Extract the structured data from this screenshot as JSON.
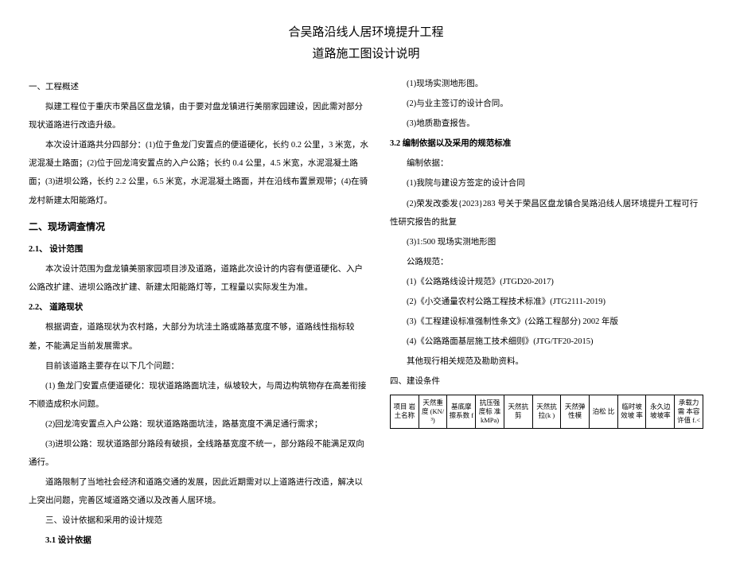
{
  "title": {
    "line1": "合吴路沿线人居环境提升工程",
    "line2": "道路施工图设计说明"
  },
  "left": {
    "h1": "一、工程概述",
    "p1": "拟建工程位于重庆市荣昌区盘龙镇，由于要对盘龙镇进行美丽家园建设，因此需对部分现状道路进行改造升级。",
    "p2": "本次设计道路共分四部分：(1)位于鱼龙门安置点的便道硬化，长约 0.2 公里，3 米宽，水泥混凝土路面；(2)位于回龙湾安置点的入户公路；长约 0.4 公里，4.5 米宽，水泥混凝土路面；(3)进坝公路，长约 2.2 公里，6.5 米宽，水泥混凝土路面，并在沿线布置景观带；(4)在骑龙村新建太阳能路灯。",
    "h2": "二、现场调查情况",
    "h2_1": "2.1、  设计范围",
    "p3": "本次设计范围为盘龙镇美丽家园项目涉及道路，道路此次设计的内容有便道硬化、入户公路改扩建、进坝公路改扩建、新建太阳能路灯等，工程量以实际发生为准。",
    "h2_2": "2.2、  道路现状",
    "p4": "根据调查，道路现状为农村路，大部分为坑洼土路或路基宽度不够，道路线性指标较差，不能满足当前发展需求。",
    "p5": "目前该道路主要存在以下几个问题：",
    "p6": "(1) 鱼龙门安置点便道硬化：现状道路路面坑洼，纵坡较大，与周边构筑物存在高差衔接不顺造成积水问题。",
    "p7": "(2)回龙湾安置点入户公路：现状道路路面坑洼，路基宽度不满足通行需求；",
    "p8": "(3)进坝公路：现状道路部分路段有破损，全线路基宽度不统一，部分路段不能满足双向通行。",
    "p9": "道路限制了当地社会经济和道路交通的发展，因此近期需对以上道路进行改造，解决以上突出问题，完善区域道路交通以及改善人居环境。",
    "h3": "三、设计依据和采用的设计规范",
    "h3_1": "3.1    设计依据"
  },
  "right": {
    "r1": "(1)现场实测地形图。",
    "r2": "(2)与业主签订的设计合同。",
    "r3": "(3)地质勘查报告。",
    "h3_2": "3.2    编制依据以及采用的规范标准",
    "r4": "编制依据：",
    "r5": "(1)我院与建设方签定的设计合同",
    "r6": "(2)荣发改委发{2023}283 号关于荣昌区盘龙镇合吴路沿线人居环境提升工程可行性研究报告的批复",
    "r7": "(3)1:500 现场实测地形图",
    "r8": "公路规范：",
    "r9": "(1)《公路路线设计规范》(JTGD20-2017)",
    "r10": "(2)《小交通量农村公路工程技术标准》(JTG2111-2019)",
    "r11": "(3)《工程建设标准强制性条文》(公路工程部分) 2002 年版",
    "r12": "(4)《公路路面基层施工技术细则》(JTG/TF20-2015)",
    "r13": "其他现行相关规范及勘助资料。",
    "h4": "四、建设条件"
  },
  "table": {
    "headers": [
      "项目\n岩土名称",
      "天然重度\n(KN/³)",
      "基底摩擦系数 f",
      "抗压强度标\n准\nkMPa)",
      "天然抗剪",
      "天然抗\n拉(k\n)",
      "天然弹性模",
      "泊松\n比",
      "临时坡\n效坡\n率",
      "永久边\n坡坡率",
      "承载力需\n本容许值\n f.<"
    ]
  }
}
